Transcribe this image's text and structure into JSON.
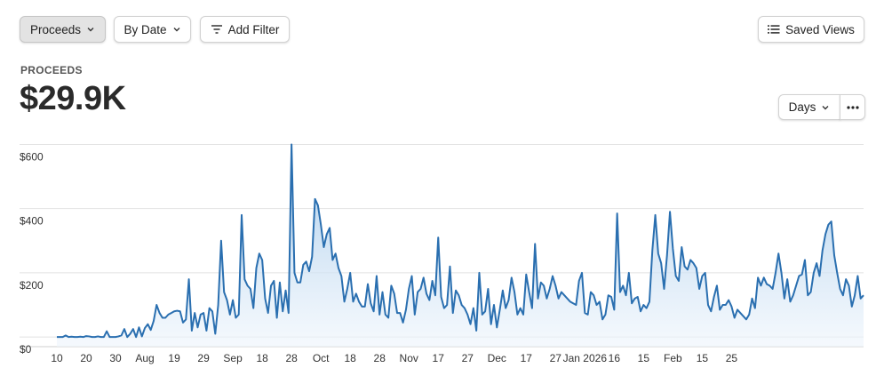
{
  "toolbar": {
    "proceeds_label": "Proceeds",
    "by_date_label": "By Date",
    "add_filter_label": "Add Filter",
    "saved_views_label": "Saved Views"
  },
  "metric": {
    "label": "PROCEEDS",
    "value": "$29.9K"
  },
  "controls": {
    "range_label": "Days",
    "more_icon": "ellipsis-icon"
  },
  "colors": {
    "line": "#2a6fb0",
    "fill_top": "#9ec5e8",
    "fill_bottom": "#eef5fc",
    "grid": "#e2e2e2"
  },
  "chart_data": {
    "type": "area",
    "title": "",
    "xlabel": "",
    "ylabel": "",
    "ylim": [
      -30,
      640
    ],
    "y_ticks": [
      0,
      200,
      400,
      600
    ],
    "y_tick_labels": [
      "$0",
      "$200",
      "$400",
      "$600"
    ],
    "x_tick_labels": [
      "10",
      "20",
      "30",
      "Aug",
      "19",
      "29",
      "Sep",
      "18",
      "28",
      "Oct",
      "18",
      "28",
      "Nov",
      "17",
      "27",
      "Dec",
      "17",
      "27",
      "Jan 2026",
      "16",
      "15",
      "Feb",
      "15",
      "25"
    ],
    "x_tick_index": [
      0,
      10,
      20,
      30,
      40,
      50,
      60,
      70,
      80,
      90,
      100,
      110,
      120,
      130,
      140,
      150,
      160,
      170,
      180,
      190,
      200,
      210,
      220,
      230
    ],
    "series": [
      {
        "values": [
          0,
          0,
          0,
          5,
          0,
          1,
          0,
          0,
          1,
          0,
          3,
          2,
          0,
          0,
          2,
          0,
          0,
          18,
          0,
          0,
          0,
          2,
          5,
          25,
          0,
          10,
          25,
          0,
          30,
          2,
          28,
          40,
          22,
          50,
          100,
          75,
          60,
          60,
          70,
          75,
          80,
          82,
          80,
          45,
          55,
          180,
          20,
          75,
          30,
          70,
          75,
          20,
          90,
          80,
          10,
          100,
          300,
          140,
          115,
          70,
          115,
          60,
          70,
          380,
          180,
          160,
          150,
          90,
          215,
          260,
          240,
          120,
          75,
          160,
          175,
          60,
          170,
          80,
          145,
          75,
          600,
          200,
          170,
          170,
          225,
          235,
          205,
          250,
          430,
          410,
          350,
          280,
          320,
          340,
          240,
          260,
          215,
          190,
          110,
          150,
          200,
          110,
          135,
          110,
          95,
          95,
          165,
          105,
          80,
          190,
          70,
          140,
          70,
          60,
          160,
          135,
          75,
          75,
          45,
          85,
          150,
          190,
          70,
          140,
          150,
          185,
          135,
          115,
          175,
          130,
          310,
          125,
          90,
          100,
          220,
          75,
          145,
          130,
          100,
          90,
          70,
          40,
          90,
          20,
          200,
          70,
          80,
          150,
          40,
          100,
          30,
          85,
          145,
          90,
          115,
          185,
          140,
          70,
          90,
          70,
          195,
          140,
          90,
          290,
          120,
          170,
          160,
          120,
          150,
          190,
          160,
          120,
          140,
          130,
          120,
          110,
          105,
          100,
          175,
          200,
          75,
          70,
          140,
          130,
          100,
          110,
          55,
          70,
          130,
          125,
          85,
          385,
          140,
          160,
          130,
          200,
          105,
          120,
          125,
          80,
          100,
          90,
          110,
          270,
          380,
          260,
          230,
          150,
          255,
          390,
          275,
          190,
          175,
          280,
          220,
          210,
          240,
          230,
          215,
          150,
          190,
          200,
          100,
          80,
          125,
          160,
          85,
          100,
          100,
          115,
          95,
          60,
          85,
          75,
          65,
          55,
          70,
          120,
          90,
          185,
          160,
          185,
          165,
          160,
          150,
          200,
          260,
          200,
          120,
          180,
          110,
          130,
          160,
          190,
          195,
          240,
          130,
          140,
          200,
          230,
          190,
          270,
          320,
          350,
          360,
          255,
          200,
          150,
          130,
          180,
          160,
          95,
          130,
          190,
          120,
          130
        ]
      }
    ]
  }
}
